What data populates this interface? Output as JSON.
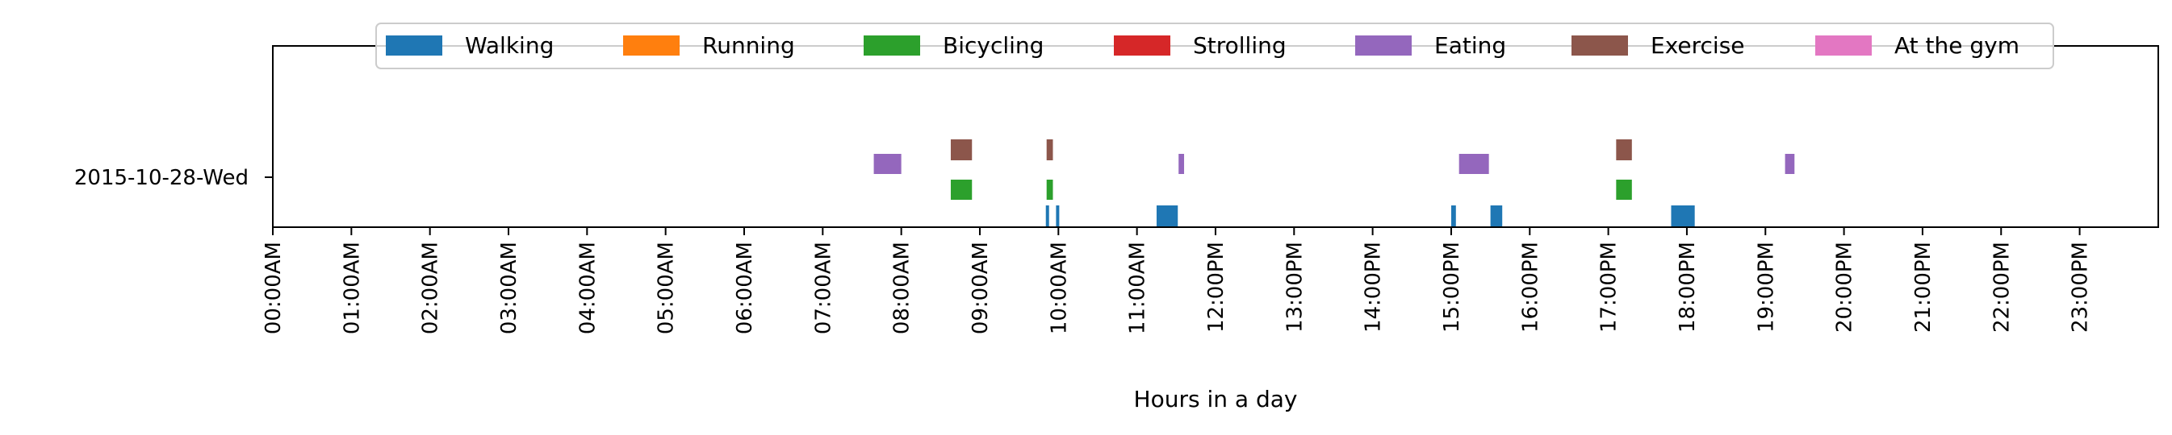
{
  "chart_data": {
    "type": "timeline",
    "title": "",
    "xlabel": "Hours in a day",
    "ylabel": "",
    "xlim": [
      0,
      24
    ],
    "x_ticks": [
      "00:00AM",
      "01:00AM",
      "02:00AM",
      "03:00AM",
      "04:00AM",
      "05:00AM",
      "06:00AM",
      "07:00AM",
      "08:00AM",
      "09:00AM",
      "10:00AM",
      "11:00AM",
      "12:00PM",
      "13:00PM",
      "14:00PM",
      "15:00PM",
      "16:00PM",
      "17:00PM",
      "18:00PM",
      "19:00PM",
      "20:00PM",
      "21:00PM",
      "22:00PM",
      "23:00PM"
    ],
    "y_label": "2015-10-28-Wed",
    "grid": false,
    "legend_position": "top-center",
    "series": [
      {
        "name": "Walking",
        "color": "#1f77b4",
        "segments": [
          [
            9.84,
            9.87
          ],
          [
            9.97,
            10.01
          ],
          [
            11.25,
            11.52
          ],
          [
            15.0,
            15.06
          ],
          [
            15.5,
            15.65
          ],
          [
            17.8,
            18.1
          ]
        ]
      },
      {
        "name": "Running",
        "color": "#ff7f0e",
        "segments": []
      },
      {
        "name": "Bicycling",
        "color": "#2ca02c",
        "segments": [
          [
            8.63,
            8.9
          ],
          [
            9.85,
            9.93
          ],
          [
            17.1,
            17.3
          ]
        ]
      },
      {
        "name": "Strolling",
        "color": "#d62728",
        "segments": []
      },
      {
        "name": "Eating",
        "color": "#9467bd",
        "segments": [
          [
            7.65,
            8.0
          ],
          [
            11.53,
            11.6
          ],
          [
            15.1,
            15.48
          ],
          [
            19.25,
            19.37
          ]
        ]
      },
      {
        "name": "Exercise",
        "color": "#8c564b",
        "segments": [
          [
            8.63,
            8.9
          ],
          [
            9.85,
            9.93
          ],
          [
            17.1,
            17.3
          ]
        ]
      },
      {
        "name": "At the gym",
        "color": "#e377c2",
        "segments": []
      }
    ]
  }
}
